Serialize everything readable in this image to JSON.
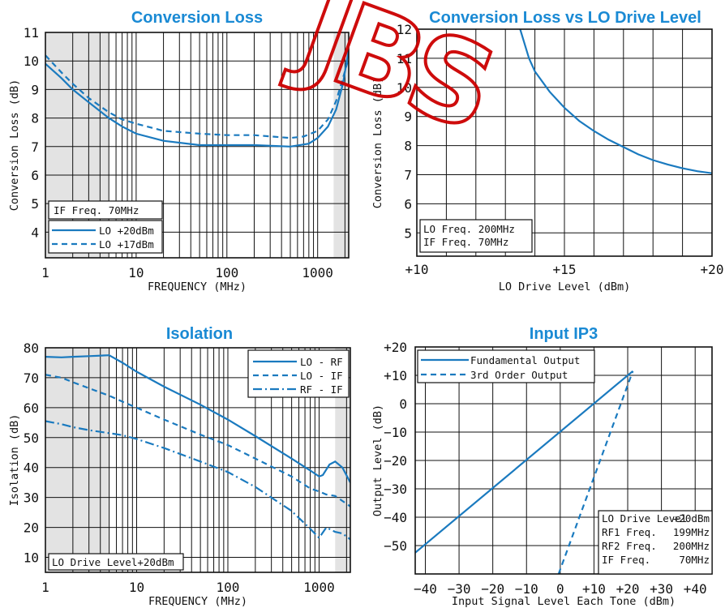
{
  "colors": {
    "series": "#1a7abf",
    "title": "#1a8ad4",
    "band": "#e3e3e3",
    "watermark": "#cc0000"
  },
  "watermark": {
    "text": "JBS"
  },
  "chart_data": [
    {
      "id": "conv",
      "type": "line",
      "title": "Conversion Loss",
      "xlabel": "FREQUENCY (MHz)",
      "ylabel": "Conversion Loss (dB)",
      "xscale": "log",
      "xlim": [
        1,
        2200
      ],
      "ylim": [
        3.1,
        11
      ],
      "xticks": [
        1,
        10,
        100,
        1000
      ],
      "xtick_labels": [
        "1",
        "10",
        "100",
        "1000"
      ],
      "yticks": [
        4,
        5,
        6,
        7,
        8,
        9,
        10,
        11
      ],
      "ytick_labels": [
        "4",
        "5",
        "6",
        "7",
        "8",
        "9",
        "10",
        "11"
      ],
      "shaded_bands": [
        [
          1,
          5
        ],
        [
          1500,
          2200
        ]
      ],
      "notes": [
        "IF Freq.  70MHz"
      ],
      "legend": {
        "placement": "bottom-left"
      },
      "series": [
        {
          "name": "LO +20dBm",
          "style": "solid",
          "x": [
            1,
            1.5,
            2,
            3,
            5,
            7,
            10,
            20,
            50,
            100,
            200,
            500,
            800,
            1000,
            1300,
            1600,
            1900,
            2200
          ],
          "y": [
            9.9,
            9.4,
            9.0,
            8.55,
            8.0,
            7.7,
            7.45,
            7.2,
            7.05,
            7.05,
            7.05,
            7.0,
            7.1,
            7.3,
            7.7,
            8.3,
            9.2,
            10.4
          ]
        },
        {
          "name": "LO +17dBm",
          "style": "dashed",
          "x": [
            1,
            1.5,
            2,
            3,
            5,
            7,
            10,
            20,
            50,
            100,
            200,
            500,
            700,
            1000,
            1300,
            1600,
            1900,
            2200
          ],
          "y": [
            10.2,
            9.6,
            9.2,
            8.7,
            8.2,
            7.95,
            7.8,
            7.55,
            7.45,
            7.4,
            7.4,
            7.3,
            7.35,
            7.55,
            7.95,
            8.6,
            9.4,
            10.1
          ]
        }
      ]
    },
    {
      "id": "lo",
      "type": "line",
      "title": "Conversion Loss vs LO Drive Level",
      "xlabel": "LO Drive Level (dBm)",
      "ylabel": "Conversion Loss (dB)",
      "xscale": "linear",
      "xlim": [
        10,
        20
      ],
      "ylim": [
        4.2,
        12
      ],
      "xticks": [
        10,
        15,
        20
      ],
      "xtick_labels": [
        "+10",
        "+15",
        "+20"
      ],
      "yticks": [
        5,
        6,
        7,
        8,
        9,
        10,
        11,
        12
      ],
      "ytick_labels": [
        "5",
        "6",
        "7",
        "8",
        "9",
        "10",
        "11",
        "12"
      ],
      "notes": [
        "LO Freq.  200MHz",
        "IF Freq.   70MHz"
      ],
      "series": [
        {
          "style": "solid",
          "x": [
            13.5,
            13.8,
            14.0,
            14.5,
            15.0,
            15.5,
            16.0,
            16.5,
            17.0,
            17.5,
            18.0,
            18.5,
            19.0,
            19.5,
            20.0
          ],
          "y": [
            12.0,
            11.0,
            10.55,
            9.85,
            9.3,
            8.85,
            8.5,
            8.2,
            7.95,
            7.7,
            7.5,
            7.35,
            7.22,
            7.12,
            7.05
          ]
        }
      ]
    },
    {
      "id": "iso",
      "type": "line",
      "title": "Isolation",
      "xlabel": "FREQUENCY (MHz)",
      "ylabel": "Isolation (dB)",
      "xscale": "log",
      "xlim": [
        1,
        2200
      ],
      "ylim": [
        5,
        80
      ],
      "xticks": [
        1,
        10,
        100,
        1000
      ],
      "xtick_labels": [
        "1",
        "10",
        "100",
        "1000"
      ],
      "yticks": [
        10,
        20,
        30,
        40,
        50,
        60,
        70,
        80
      ],
      "ytick_labels": [
        "10",
        "20",
        "30",
        "40",
        "50",
        "60",
        "70",
        "80"
      ],
      "shaded_bands": [
        [
          1,
          5
        ],
        [
          1500,
          2200
        ]
      ],
      "notes": [
        "LO Drive Level+20dBm"
      ],
      "legend": {
        "placement": "top-right"
      },
      "series": [
        {
          "name": "LO - RF",
          "style": "solid",
          "x": [
            1,
            1.5,
            2,
            3,
            5,
            7,
            10,
            20,
            50,
            100,
            200,
            500,
            800,
            1000,
            1100,
            1300,
            1500,
            1800,
            2200
          ],
          "y": [
            77,
            76.8,
            77,
            77.2,
            77.5,
            75,
            72,
            67,
            61,
            56,
            50.5,
            43,
            39,
            37,
            37.5,
            41,
            42,
            40,
            35
          ]
        },
        {
          "name": "LO - IF",
          "style": "dashed",
          "x": [
            1,
            1.5,
            2,
            3,
            5,
            7,
            10,
            20,
            50,
            100,
            200,
            500,
            800,
            1000,
            1200,
            1500,
            2200
          ],
          "y": [
            71,
            70,
            68.5,
            66.5,
            64,
            62,
            60,
            56,
            51,
            47.5,
            43,
            37,
            33,
            32,
            31,
            30.5,
            27
          ]
        },
        {
          "name": "RF - IF",
          "style": "dashdot",
          "x": [
            1,
            1.5,
            2,
            3,
            5,
            7,
            10,
            20,
            50,
            100,
            200,
            500,
            800,
            1000,
            1200,
            1500,
            1800,
            2200
          ],
          "y": [
            55.5,
            54.5,
            53.5,
            52.5,
            51.5,
            50.8,
            49.5,
            46.5,
            42,
            38.5,
            33.5,
            25.5,
            19.5,
            16.5,
            20,
            18.5,
            18,
            16
          ]
        }
      ]
    },
    {
      "id": "ip3",
      "type": "line",
      "title": "Input IP3",
      "xlabel": "Input Signal Level Each Tone (dBm)",
      "ylabel": "Output Level (dB)",
      "xscale": "linear",
      "xlim": [
        -43,
        45
      ],
      "ylim": [
        -60,
        20
      ],
      "xticks": [
        -40,
        -30,
        -20,
        -10,
        0,
        10,
        20,
        30,
        40
      ],
      "xtick_labels": [
        "−40",
        "−30",
        "−20",
        "−10",
        "0",
        "+10",
        "+20",
        "+30",
        "+40"
      ],
      "yticks": [
        -50,
        -40,
        -30,
        -20,
        -10,
        0,
        10,
        20
      ],
      "ytick_labels": [
        "−50",
        "−40",
        "−30",
        "−20",
        "−10",
        "0",
        "+10",
        "+20"
      ],
      "legend": {
        "placement": "top-left"
      },
      "notes": [
        [
          "LO Drive Level",
          "+20dBm"
        ],
        [
          "RF1 Freq.",
          "199MHz"
        ],
        [
          "RF2 Freq.",
          "200MHz"
        ],
        [
          "IF Freq.",
          "70MHz"
        ]
      ],
      "series": [
        {
          "name": "Fundamental Output",
          "style": "solid",
          "x": [
            -43,
            21.5
          ],
          "y": [
            -52.5,
            11.5
          ]
        },
        {
          "name": "3rd Order Output",
          "style": "dashed",
          "x": [
            -0.5,
            21.5
          ],
          "y": [
            -60,
            11.5
          ]
        }
      ]
    }
  ]
}
